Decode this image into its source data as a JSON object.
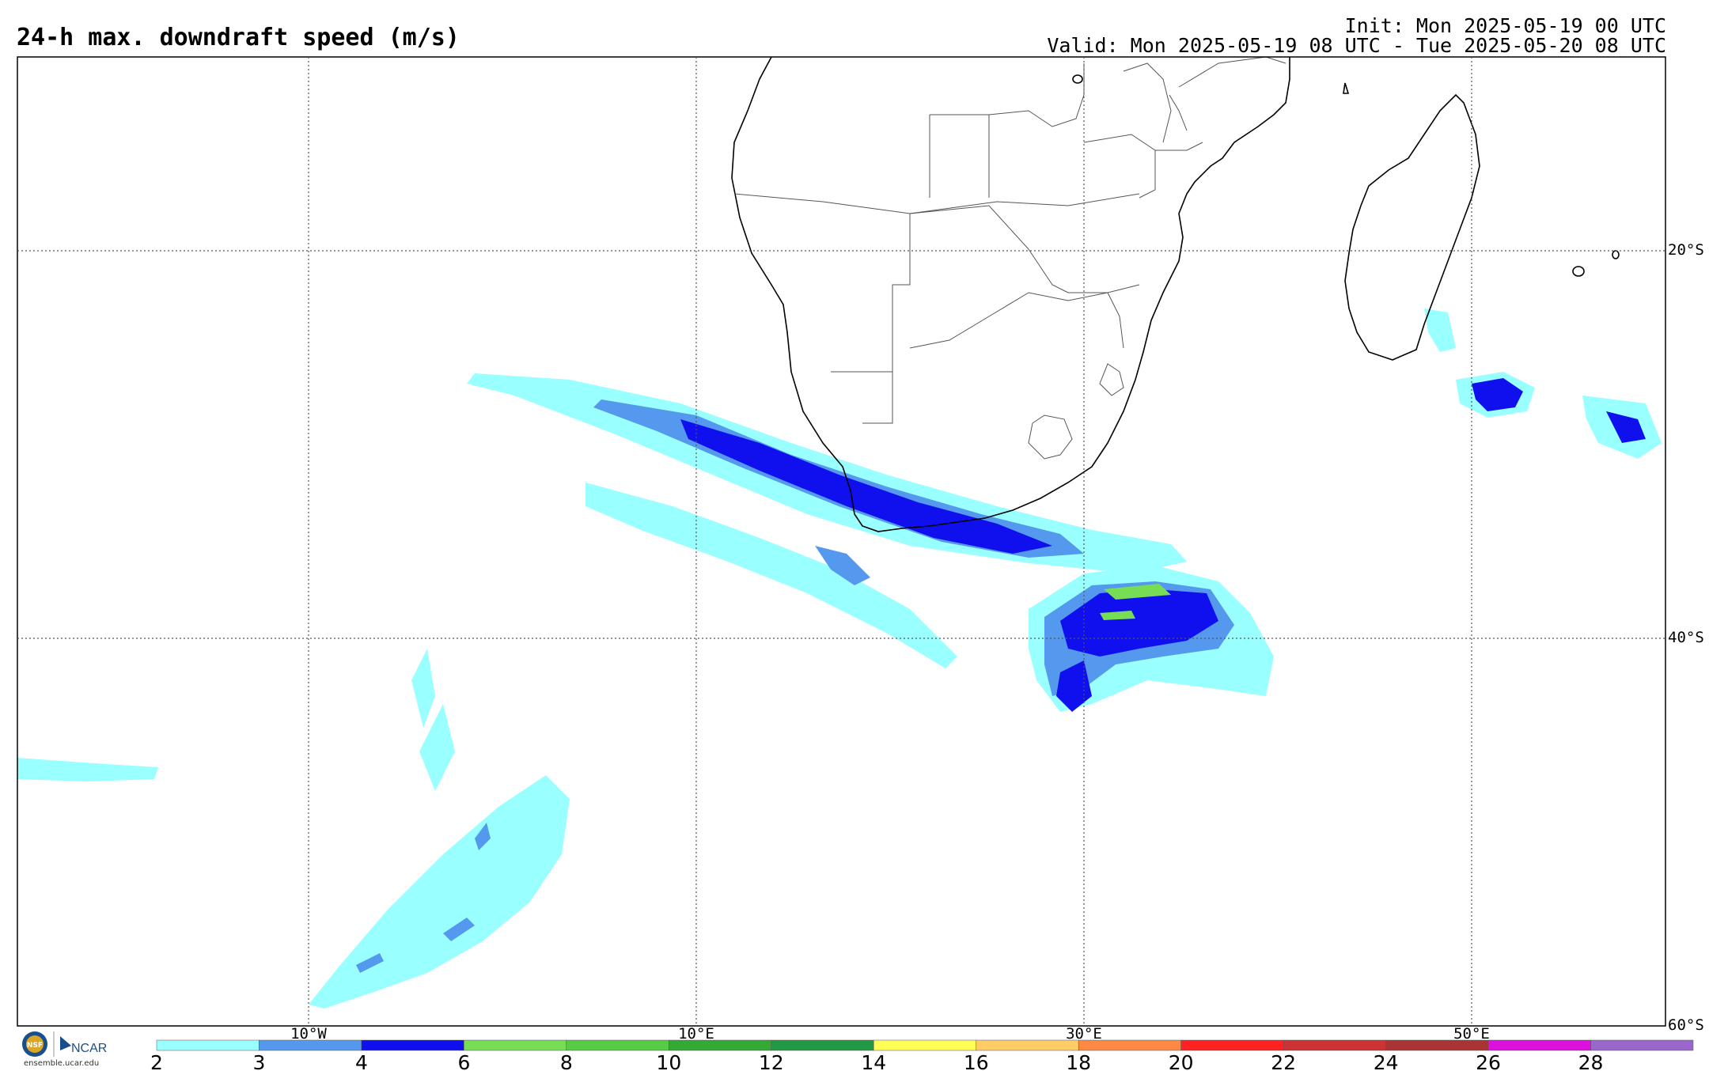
{
  "header": {
    "title": "24-h max. downdraft speed (m/s)",
    "init": "Init: Mon 2025-05-19 00 UTC",
    "valid": "Valid: Mon 2025-05-19 08 UTC - Tue 2025-05-20 08 UTC"
  },
  "map": {
    "region": "southern Africa and South Atlantic / Indian Ocean",
    "lon_range": [
      -25,
      60
    ],
    "lat_range": [
      -60,
      -10
    ],
    "lon_labels": [
      "10°W",
      "10°E",
      "30°E",
      "50°E"
    ],
    "lat_labels": [
      "20°S",
      "40°S",
      "60°S"
    ]
  },
  "colorbar": {
    "ticks": [
      "2",
      "3",
      "4",
      "6",
      "8",
      "10",
      "12",
      "14",
      "16",
      "18",
      "20",
      "22",
      "24",
      "26",
      "28"
    ],
    "colors": [
      "#99ffff",
      "#5599ee",
      "#1010ee",
      "#77dd55",
      "#55cc44",
      "#33aa33",
      "#229944",
      "#ffff55",
      "#ffcc66",
      "#ff8844",
      "#ff2222",
      "#cc3333",
      "#aa3333",
      "#dd11dd",
      "#9966cc"
    ]
  },
  "logo": {
    "nsf": "NSF",
    "ncar": "NCAR",
    "caption": "ensemble.ucar.edu"
  }
}
